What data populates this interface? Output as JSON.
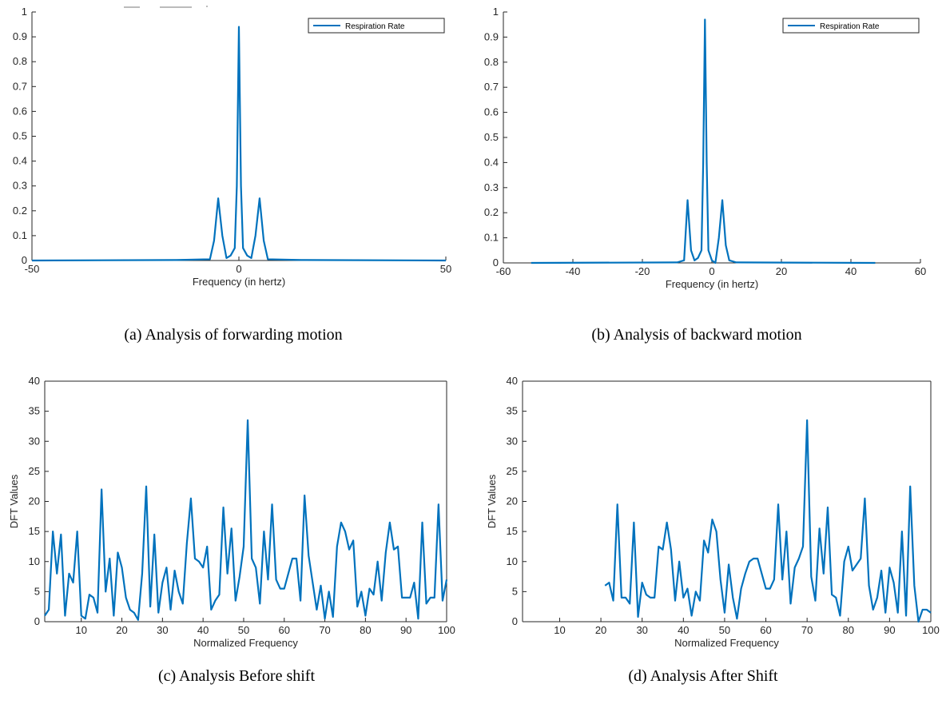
{
  "colors": {
    "series": "#0072BD",
    "axis": "#262626",
    "background": "#ffffff"
  },
  "captions": {
    "a": "(a) Analysis of forwarding motion",
    "b": "(b) Analysis of backward motion",
    "c": "(c) Analysis Before shift",
    "d": "(d) Analysis After Shift"
  },
  "chart_data": [
    {
      "id": "a",
      "type": "line",
      "xlabel": "Frequency (in hertz)",
      "ylabel": "",
      "xlim": [
        -50,
        50
      ],
      "ylim": [
        0,
        1
      ],
      "xticks": [
        -50,
        0,
        50
      ],
      "yticks": [
        0,
        0.1,
        0.2,
        0.3,
        0.4,
        0.5,
        0.6,
        0.7,
        0.8,
        0.9,
        1
      ],
      "legend": {
        "position": "top-right",
        "entries": [
          "Respiration Rate"
        ]
      },
      "series": [
        {
          "name": "Respiration Rate",
          "x": [
            -50,
            -15,
            -7,
            -6,
            -5,
            -4,
            -3,
            -2,
            -1,
            -0.5,
            0,
            0.5,
            1,
            2,
            3,
            4,
            5,
            6,
            7,
            15,
            50
          ],
          "y": [
            0,
            0.002,
            0.005,
            0.08,
            0.25,
            0.1,
            0.01,
            0.02,
            0.05,
            0.3,
            0.94,
            0.3,
            0.05,
            0.02,
            0.01,
            0.1,
            0.25,
            0.08,
            0.005,
            0.002,
            0
          ]
        }
      ]
    },
    {
      "id": "b",
      "type": "line",
      "xlabel": "Frequency (in hertz)",
      "ylabel": "",
      "xlim": [
        -60,
        60
      ],
      "ylim": [
        0,
        1
      ],
      "xticks": [
        -60,
        -40,
        -20,
        0,
        20,
        40,
        60
      ],
      "yticks": [
        0,
        0.1,
        0.2,
        0.3,
        0.4,
        0.5,
        0.6,
        0.7,
        0.8,
        0.9,
        1
      ],
      "legend": {
        "position": "top-right",
        "entries": [
          "Respiration Rate"
        ]
      },
      "series": [
        {
          "name": "Respiration Rate",
          "x": [
            -52,
            -10,
            -8,
            -7,
            -6,
            -5,
            -4,
            -3,
            -2.5,
            -2,
            -1.5,
            -1,
            0,
            1,
            2,
            3,
            4,
            5,
            7,
            47
          ],
          "y": [
            0,
            0.002,
            0.01,
            0.25,
            0.05,
            0.01,
            0.02,
            0.05,
            0.4,
            0.97,
            0.4,
            0.05,
            0.01,
            0.0,
            0.1,
            0.25,
            0.07,
            0.01,
            0.002,
            0
          ]
        }
      ]
    },
    {
      "id": "c",
      "type": "line",
      "xlabel": "Normalized Frequency",
      "ylabel": "DFT Values",
      "xlim": [
        1,
        100
      ],
      "ylim": [
        0,
        40
      ],
      "xticks": [
        10,
        20,
        30,
        40,
        50,
        60,
        70,
        80,
        90,
        100
      ],
      "yticks": [
        0,
        5,
        10,
        15,
        20,
        25,
        30,
        35,
        40
      ],
      "series": [
        {
          "name": "",
          "x": [
            1,
            2,
            3,
            4,
            5,
            6,
            7,
            8,
            9,
            10,
            11,
            12,
            13,
            14,
            15,
            16,
            17,
            18,
            19,
            20,
            21,
            22,
            23,
            24,
            25,
            26,
            27,
            28,
            29,
            30,
            31,
            32,
            33,
            34,
            35,
            36,
            37,
            38,
            39,
            40,
            41,
            42,
            43,
            44,
            45,
            46,
            47,
            48,
            49,
            50,
            51,
            52,
            53,
            54,
            55,
            56,
            57,
            58,
            59,
            60,
            61,
            62,
            63,
            64,
            65,
            66,
            67,
            68,
            69,
            70,
            71,
            72,
            73,
            74,
            75,
            76,
            77,
            78,
            79,
            80,
            81,
            82,
            83,
            84,
            85,
            86,
            87,
            88,
            89,
            90,
            91,
            92,
            93,
            94,
            95,
            96,
            97,
            98,
            99,
            100
          ],
          "y": [
            1,
            2,
            15,
            8,
            14.5,
            1,
            8,
            6.5,
            15,
            1,
            0.5,
            4.5,
            4,
            1.5,
            22,
            5,
            10.5,
            1,
            11.5,
            9,
            4,
            2,
            1.5,
            0.3,
            8,
            22.5,
            2.5,
            14.5,
            1.5,
            6.5,
            9,
            2,
            8.5,
            5,
            3,
            13,
            20.5,
            10.5,
            10,
            9,
            12.5,
            2,
            3.5,
            4.5,
            19,
            8,
            15.5,
            3.5,
            7.5,
            12.5,
            33.5,
            10.5,
            9,
            3,
            15,
            7,
            19.5,
            7,
            5.5,
            5.5,
            8,
            10.5,
            10.5,
            3.5,
            21,
            11,
            6.5,
            2,
            6,
            0.5,
            5,
            0.8,
            12.5,
            16.5,
            15,
            12,
            13.5,
            2.5,
            5,
            1,
            5.5,
            4.5,
            10,
            3.5,
            11.5,
            16.5,
            12,
            12.5,
            4,
            4,
            4,
            6.5,
            0.5,
            16.5,
            3,
            4,
            4,
            19.5,
            3.5,
            7
          ]
        }
      ]
    },
    {
      "id": "d",
      "type": "line",
      "xlabel": "Normalized Frequency",
      "ylabel": "DFT Values",
      "xlim": [
        1,
        100
      ],
      "ylim": [
        0,
        40
      ],
      "xticks": [
        10,
        20,
        30,
        40,
        50,
        60,
        70,
        80,
        90,
        100
      ],
      "yticks": [
        0,
        5,
        10,
        15,
        20,
        25,
        30,
        35,
        40
      ],
      "series": [
        {
          "name": "",
          "x": [
            21,
            22,
            23,
            24,
            25,
            26,
            27,
            28,
            29,
            30,
            31,
            32,
            33,
            34,
            35,
            36,
            37,
            38,
            39,
            40,
            41,
            42,
            43,
            44,
            45,
            46,
            47,
            48,
            49,
            50,
            51,
            52,
            53,
            54,
            55,
            56,
            57,
            58,
            59,
            60,
            61,
            62,
            63,
            64,
            65,
            66,
            67,
            68,
            69,
            70,
            71,
            72,
            73,
            74,
            75,
            76,
            77,
            78,
            79,
            80,
            81,
            82,
            83,
            84,
            85,
            86,
            87,
            88,
            89,
            90,
            91,
            92,
            93,
            94,
            95,
            96,
            97,
            98,
            99,
            100
          ],
          "y": [
            6,
            6.5,
            3.5,
            19.5,
            4,
            4,
            3,
            16.5,
            0.8,
            6.5,
            4.5,
            4,
            4,
            12.5,
            12,
            16.5,
            12,
            3.5,
            10,
            4,
            5.5,
            1,
            5,
            3.5,
            13.5,
            11.5,
            17,
            15,
            7,
            1.5,
            9.5,
            4,
            0.5,
            5.5,
            8,
            10,
            10.5,
            10.5,
            8,
            5.5,
            5.5,
            7,
            19.5,
            7,
            15,
            3,
            9,
            10.5,
            12.5,
            33.5,
            7.5,
            3.5,
            15.5,
            8,
            19,
            4.5,
            4,
            1,
            10,
            12.5,
            8.5,
            9.5,
            10.5,
            20.5,
            6,
            2,
            4,
            8.5,
            1.5,
            9,
            6.5,
            1.5,
            15,
            1,
            22.5,
            6,
            0,
            2,
            2,
            1.5
          ]
        }
      ]
    }
  ]
}
